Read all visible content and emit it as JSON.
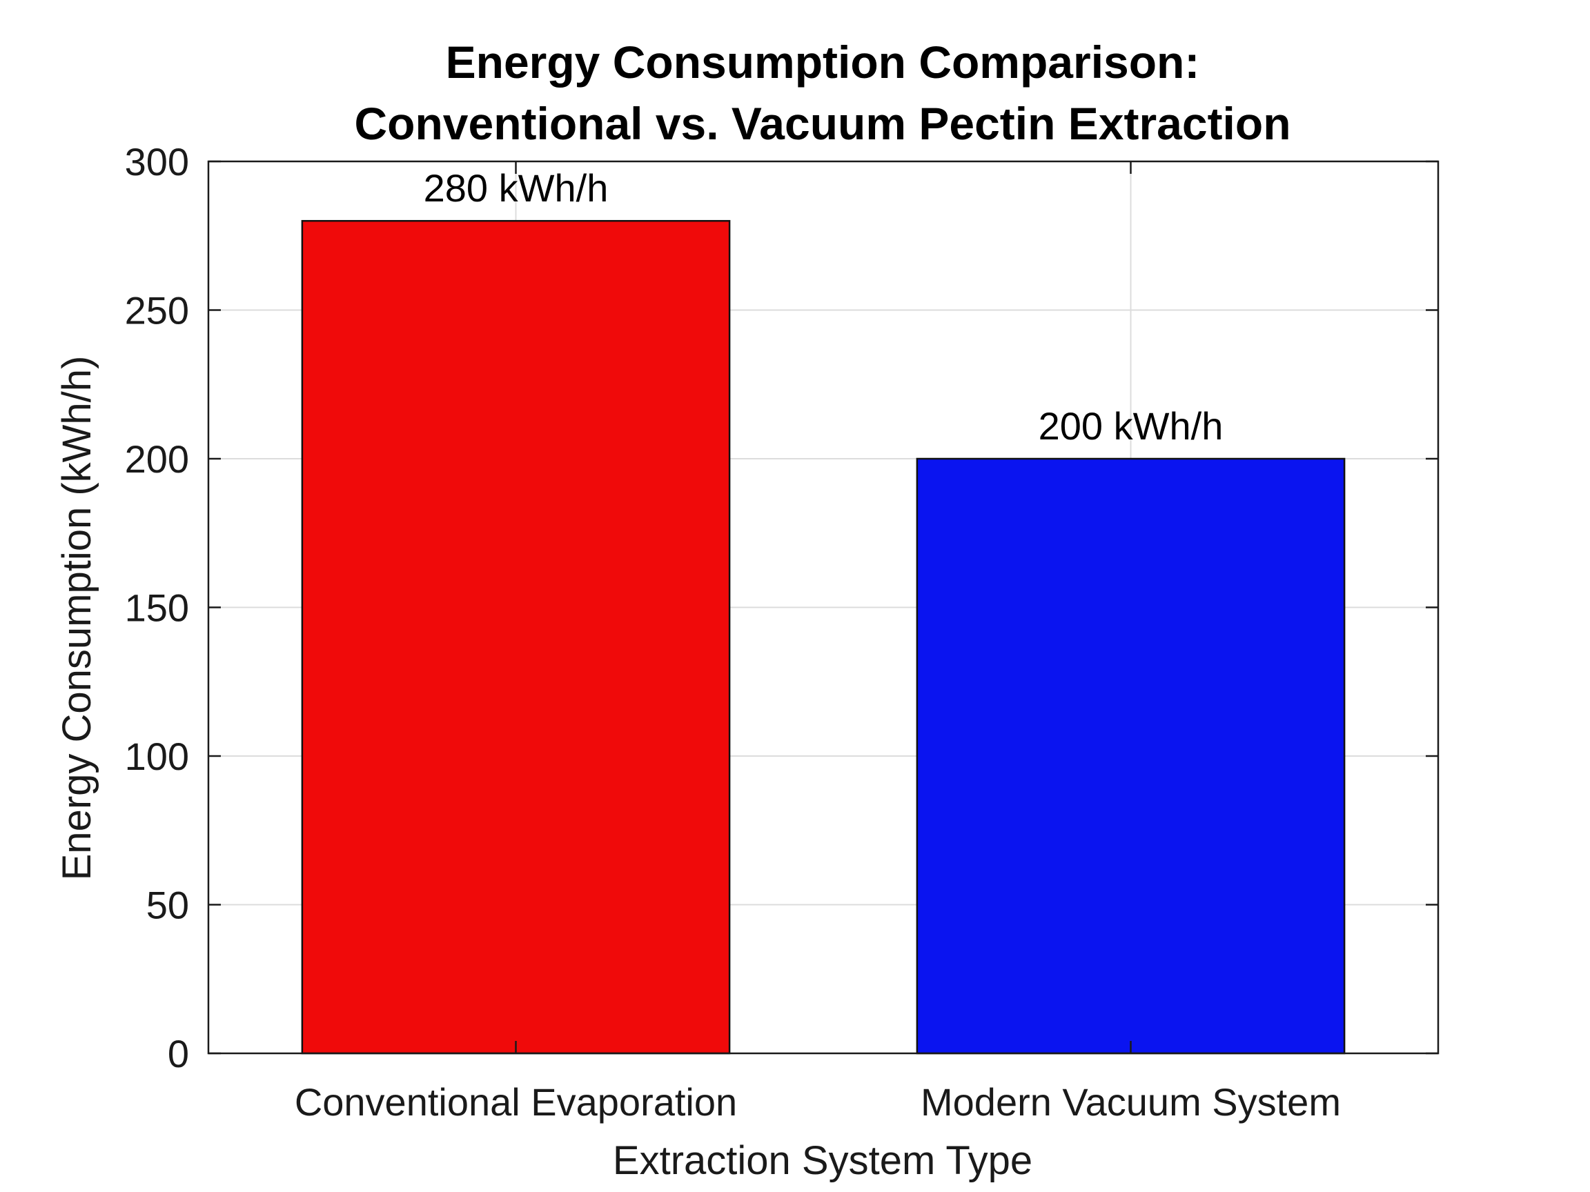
{
  "chart_data": {
    "type": "bar",
    "title": [
      "Energy Consumption Comparison:",
      "Conventional vs. Vacuum Pectin Extraction"
    ],
    "xlabel": "Extraction System Type",
    "ylabel": "Energy Consumption (kWh/h)",
    "categories": [
      "Conventional Evaporation",
      "Modern Vacuum System"
    ],
    "values": [
      280,
      200
    ],
    "data_labels": [
      "280 kWh/h",
      "200 kWh/h"
    ],
    "colors": [
      "#f00a0a",
      "#0a14f0"
    ],
    "ylim": [
      0,
      300
    ],
    "yticks": [
      0,
      50,
      100,
      150,
      200,
      250,
      300
    ],
    "ytick_labels": [
      "0",
      "50",
      "100",
      "150",
      "200",
      "250",
      "300"
    ],
    "grid": true,
    "legend": "none"
  }
}
